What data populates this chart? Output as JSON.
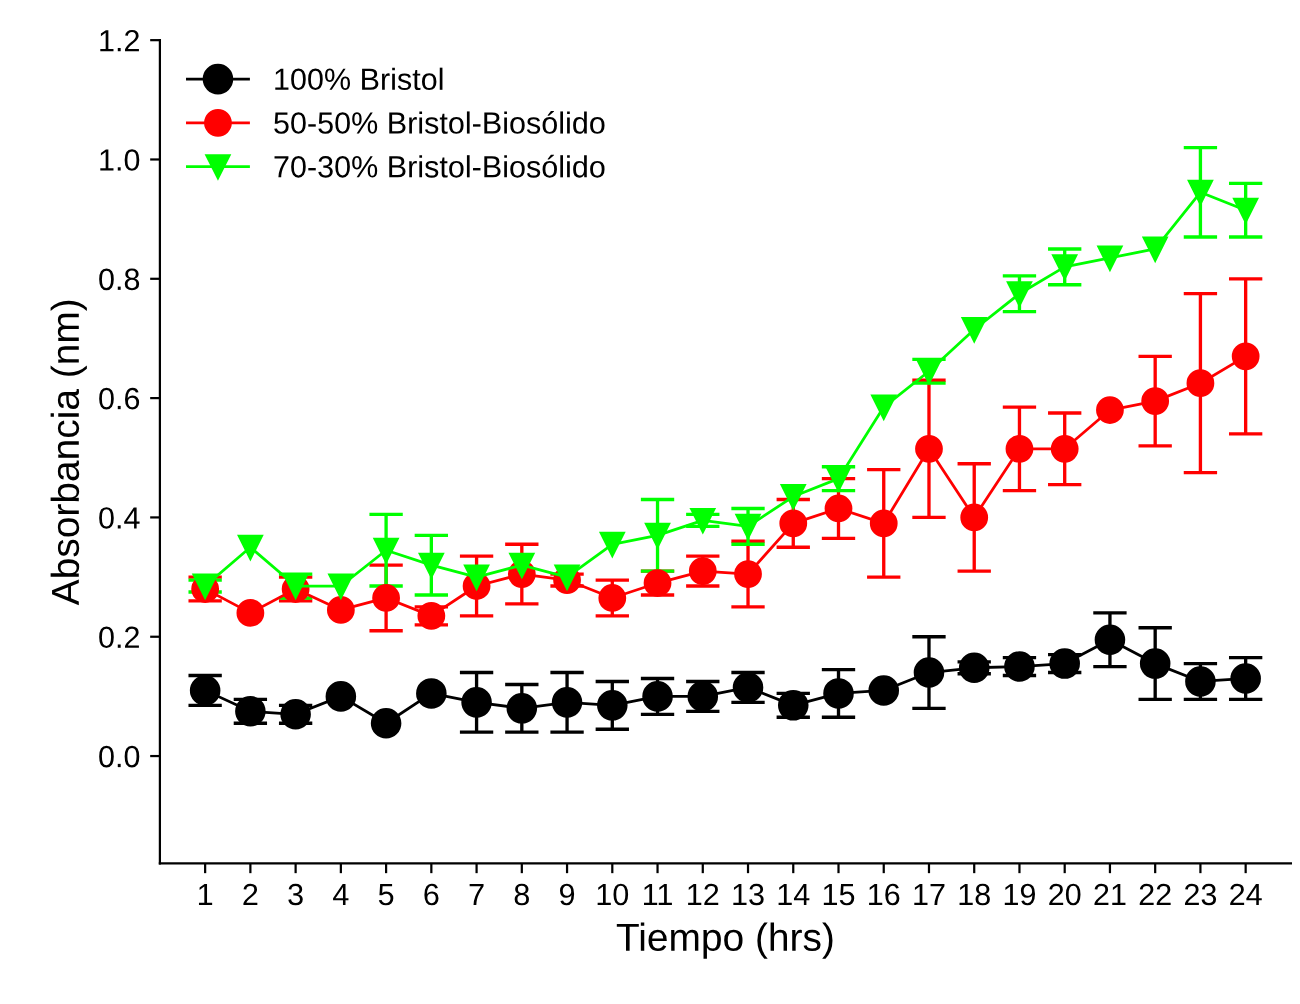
{
  "chart_data": {
    "type": "line",
    "xlabel": "Tiempo (hrs)",
    "ylabel": "Absorbancia (nm)",
    "x": [
      1,
      2,
      3,
      4,
      5,
      6,
      7,
      8,
      9,
      10,
      11,
      12,
      13,
      14,
      15,
      16,
      17,
      18,
      19,
      20,
      21,
      22,
      23,
      24
    ],
    "xlim": [
      0,
      25
    ],
    "ylim": [
      -0.18,
      1.2
    ],
    "xticks": [
      1,
      2,
      3,
      4,
      5,
      6,
      7,
      8,
      9,
      10,
      11,
      12,
      13,
      14,
      15,
      16,
      17,
      18,
      19,
      20,
      21,
      22,
      23,
      24
    ],
    "yticks": [
      {
        "value": 0,
        "label": "0.0"
      },
      {
        "value": 0.2,
        "label": "0.2"
      },
      {
        "value": 0.4,
        "label": "0.4"
      },
      {
        "value": 0.6,
        "label": "0.6"
      },
      {
        "value": 0.8,
        "label": "0.8"
      },
      {
        "value": 1.0,
        "label": "1.0"
      },
      {
        "value": 1.2,
        "label": "1.2"
      }
    ],
    "grid": false,
    "legend": "top left",
    "series": [
      {
        "name": "100% Bristol",
        "color": "#000000",
        "marker": "circle",
        "values": [
          0.11,
          0.075,
          0.07,
          0.1,
          0.055,
          0.105,
          0.09,
          0.08,
          0.09,
          0.085,
          0.1,
          0.1,
          0.115,
          0.085,
          0.105,
          0.11,
          0.14,
          0.148,
          0.15,
          0.155,
          0.195,
          0.155,
          0.125,
          0.13
        ],
        "errors": [
          0.025,
          0.02,
          0.015,
          null,
          null,
          null,
          0.05,
          0.04,
          0.05,
          0.04,
          0.03,
          0.025,
          0.025,
          0.02,
          0.04,
          null,
          0.06,
          0.01,
          0.015,
          0.015,
          0.045,
          0.06,
          0.03,
          0.035
        ]
      },
      {
        "name": "50-50% Bristol-Biosólido",
        "color": "#ff0000",
        "marker": "circle",
        "values": [
          0.28,
          0.24,
          0.28,
          0.245,
          0.265,
          0.235,
          0.285,
          0.305,
          0.295,
          0.265,
          0.29,
          0.31,
          0.305,
          0.39,
          0.415,
          0.39,
          0.515,
          0.4,
          0.515,
          0.515,
          0.58,
          0.595,
          0.625,
          0.67
        ],
        "errors": [
          0.02,
          null,
          0.02,
          null,
          0.055,
          0.015,
          0.05,
          0.05,
          0.01,
          0.03,
          0.02,
          0.025,
          0.055,
          0.04,
          0.05,
          0.09,
          0.115,
          0.09,
          0.07,
          0.06,
          null,
          0.075,
          0.15,
          0.13
        ]
      },
      {
        "name": "70-30% Bristol-Biosólido",
        "color": "#00ff00",
        "marker": "triangle",
        "values": [
          0.285,
          0.35,
          0.285,
          0.285,
          0.345,
          0.32,
          0.3,
          0.32,
          0.3,
          0.355,
          0.37,
          0.395,
          0.385,
          0.435,
          0.465,
          0.585,
          0.645,
          0.715,
          0.775,
          0.82,
          0.835,
          0.85,
          0.945,
          0.915
        ],
        "errors": [
          0.01,
          null,
          0.02,
          null,
          0.06,
          0.05,
          null,
          null,
          null,
          null,
          0.06,
          0.01,
          0.03,
          null,
          0.02,
          null,
          0.02,
          null,
          0.03,
          0.03,
          null,
          null,
          0.075,
          0.045
        ]
      }
    ]
  }
}
